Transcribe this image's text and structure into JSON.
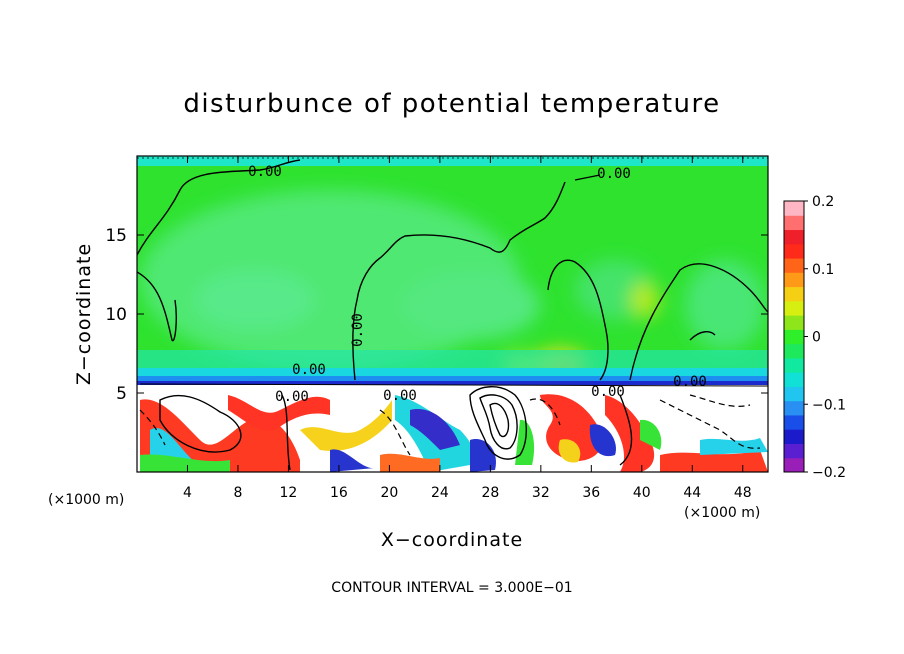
{
  "chart_data": {
    "type": "heatmap",
    "title": "disturbunce of potential temperature",
    "xlabel": "X−coordinate",
    "ylabel": "Z−coordinate",
    "x_unit_left": "(×1000 m)",
    "x_unit_right": "(×1000 m)",
    "footer": "CONTOUR INTERVAL = 3.000E−01",
    "xlim": [
      0,
      50
    ],
    "ylim": [
      0,
      20
    ],
    "x_ticks": [
      4,
      8,
      12,
      16,
      20,
      24,
      28,
      32,
      36,
      40,
      44,
      48
    ],
    "y_ticks": [
      5,
      10,
      15
    ],
    "colorbar": {
      "range": [
        -0.2,
        0.2
      ],
      "tick_values": [
        0.2,
        0.1,
        0,
        -0.1,
        -0.2
      ],
      "tick_labels": [
        "0.2",
        "0.1",
        "0",
        "−0.1",
        "−0.2"
      ],
      "colors": [
        "#9a1fb8",
        "#5a1fd0",
        "#1b1bcc",
        "#1a4ee8",
        "#2a8ff2",
        "#21c6f0",
        "#10e0d6",
        "#11e8a0",
        "#1ee85c",
        "#2fee2a",
        "#8ee61a",
        "#d6ee10",
        "#f4cf14",
        "#ff9a18",
        "#ff6418",
        "#ff2a1a",
        "#f0202a",
        "#ff6f6f",
        "#ffb6c4"
      ]
    },
    "contour_labels": [
      "0.00",
      "0.00",
      "0.00",
      "0.00",
      "0.00",
      "0.00",
      "0.00",
      "0.00"
    ]
  }
}
